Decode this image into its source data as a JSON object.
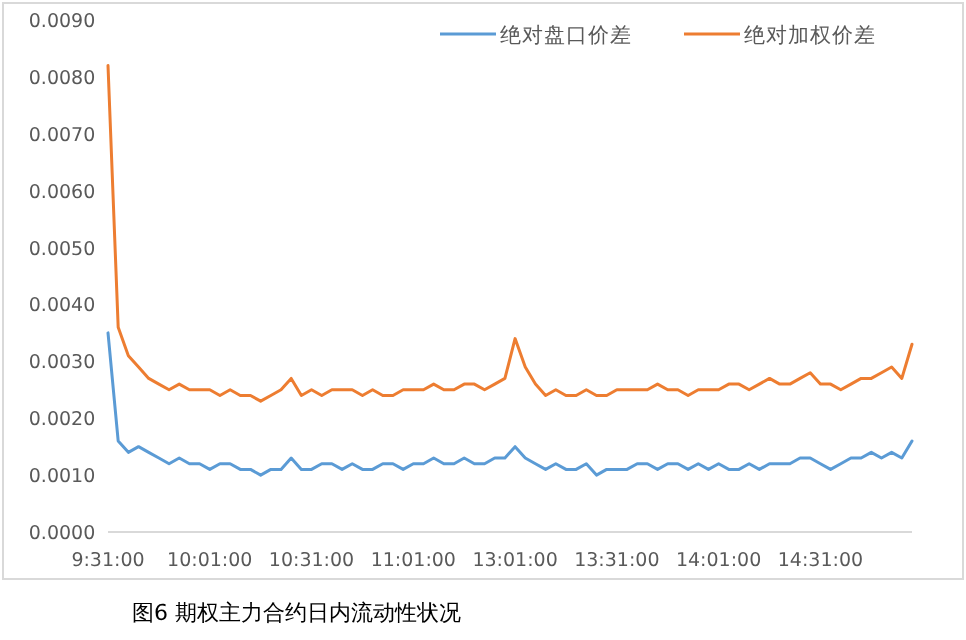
{
  "chart_data": {
    "type": "line",
    "categories": [
      "9:31:00",
      null,
      null,
      null,
      null,
      null,
      null,
      null,
      null,
      null,
      "10:01:00",
      null,
      null,
      null,
      null,
      null,
      null,
      null,
      null,
      null,
      "10:31:00",
      null,
      null,
      null,
      null,
      null,
      null,
      null,
      null,
      null,
      "11:01:00",
      null,
      null,
      null,
      null,
      null,
      null,
      null,
      null,
      null,
      "13:01:00",
      null,
      null,
      null,
      null,
      null,
      null,
      null,
      null,
      null,
      "13:31:00",
      null,
      null,
      null,
      null,
      null,
      null,
      null,
      null,
      null,
      "14:01:00",
      null,
      null,
      null,
      null,
      null,
      null,
      null,
      null,
      null,
      "14:31:00",
      null,
      null,
      null,
      null,
      null,
      null,
      null,
      null,
      null
    ],
    "series": [
      {
        "name": "绝对盘口价差",
        "color": "#5b9bd5",
        "values": [
          0.0035,
          0.0016,
          0.0014,
          0.0015,
          0.0014,
          0.0013,
          0.0012,
          0.0013,
          0.0012,
          0.0012,
          0.0011,
          0.0012,
          0.0012,
          0.0011,
          0.0011,
          0.001,
          0.0011,
          0.0011,
          0.0013,
          0.0011,
          0.0011,
          0.0012,
          0.0012,
          0.0011,
          0.0012,
          0.0011,
          0.0011,
          0.0012,
          0.0012,
          0.0011,
          0.0012,
          0.0012,
          0.0013,
          0.0012,
          0.0012,
          0.0013,
          0.0012,
          0.0012,
          0.0013,
          0.0013,
          0.0015,
          0.0013,
          0.0012,
          0.0011,
          0.0012,
          0.0011,
          0.0011,
          0.0012,
          0.001,
          0.0011,
          0.0011,
          0.0011,
          0.0012,
          0.0012,
          0.0011,
          0.0012,
          0.0012,
          0.0011,
          0.0012,
          0.0011,
          0.0012,
          0.0011,
          0.0011,
          0.0012,
          0.0011,
          0.0012,
          0.0012,
          0.0012,
          0.0013,
          0.0013,
          0.0012,
          0.0011,
          0.0012,
          0.0013,
          0.0013,
          0.0014,
          0.0013,
          0.0014,
          0.0013,
          0.0016
        ]
      },
      {
        "name": "绝对加权价差",
        "color": "#ed7d31",
        "values": [
          0.0082,
          0.0036,
          0.0031,
          0.0029,
          0.0027,
          0.0026,
          0.0025,
          0.0026,
          0.0025,
          0.0025,
          0.0025,
          0.0024,
          0.0025,
          0.0024,
          0.0024,
          0.0023,
          0.0024,
          0.0025,
          0.0027,
          0.0024,
          0.0025,
          0.0024,
          0.0025,
          0.0025,
          0.0025,
          0.0024,
          0.0025,
          0.0024,
          0.0024,
          0.0025,
          0.0025,
          0.0025,
          0.0026,
          0.0025,
          0.0025,
          0.0026,
          0.0026,
          0.0025,
          0.0026,
          0.0027,
          0.0034,
          0.0029,
          0.0026,
          0.0024,
          0.0025,
          0.0024,
          0.0024,
          0.0025,
          0.0024,
          0.0024,
          0.0025,
          0.0025,
          0.0025,
          0.0025,
          0.0026,
          0.0025,
          0.0025,
          0.0024,
          0.0025,
          0.0025,
          0.0025,
          0.0026,
          0.0026,
          0.0025,
          0.0026,
          0.0027,
          0.0026,
          0.0026,
          0.0027,
          0.0028,
          0.0026,
          0.0026,
          0.0025,
          0.0026,
          0.0027,
          0.0027,
          0.0028,
          0.0029,
          0.0027,
          0.0033
        ]
      }
    ],
    "ylim": [
      0,
      0.009
    ],
    "yticks": [
      {
        "value": 0,
        "label": "0.0000"
      },
      {
        "value": 0.001,
        "label": "0.0010"
      },
      {
        "value": 0.002,
        "label": "0.0020"
      },
      {
        "value": 0.003,
        "label": "0.0030"
      },
      {
        "value": 0.004,
        "label": "0.0040"
      },
      {
        "value": 0.005,
        "label": "0.0050"
      },
      {
        "value": 0.006,
        "label": "0.0060"
      },
      {
        "value": 0.007,
        "label": "0.0070"
      },
      {
        "value": 0.008,
        "label": "0.0080"
      },
      {
        "value": 0.009,
        "label": "0.0090"
      }
    ],
    "legend": "top",
    "annotations": [
      "图6 期权主力合约日内流动性状况"
    ]
  }
}
